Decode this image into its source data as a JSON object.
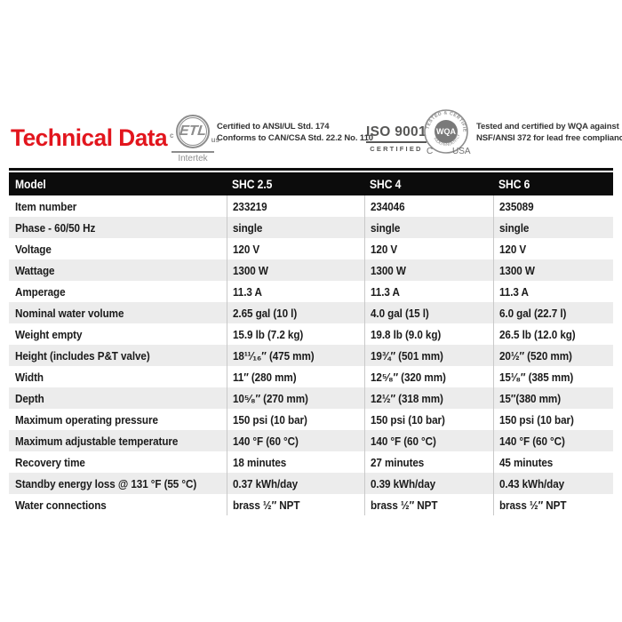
{
  "colors": {
    "red": "#e2151d",
    "headerBg": "#0c0c0c",
    "stripe": "#ececec",
    "sep": "#c9c9c9",
    "logo": "#8d8d8d"
  },
  "header": {
    "title": "Technical Data",
    "etl": {
      "mark": "ETL",
      "c": "c",
      "us": "us",
      "intertek": "Intertek",
      "line1": "Certified to ANSI/UL Std. 174",
      "line2": "Conforms to CAN/CSA Std. 22.2 No. 110"
    },
    "iso": {
      "line1": "ISO 9001",
      "line2": "CERTIFIED"
    },
    "wqa": {
      "arc_top": "TESTED & CERTIFIED",
      "arc_bottom": "INDEPENDENTLY",
      "center": "WQA",
      "c": "C",
      "usa": "USA",
      "line1": "Tested and certified by WQA against",
      "line2": "NSF/ANSI 372 for lead free compliance"
    }
  },
  "table": {
    "columns": [
      "Model",
      "SHC 2.5",
      "SHC 4",
      "SHC 6"
    ],
    "rows": [
      {
        "label": "Item number",
        "values": [
          "233219",
          "234046",
          "235089"
        ]
      },
      {
        "label": "Phase - 60/50 Hz",
        "values": [
          "single",
          "single",
          "single"
        ]
      },
      {
        "label": "Voltage",
        "values": [
          "120 V",
          "120 V",
          "120 V"
        ]
      },
      {
        "label": "Wattage",
        "values": [
          "1300 W",
          "1300 W",
          "1300 W"
        ]
      },
      {
        "label": "Amperage",
        "values": [
          "11.3 A",
          "11.3 A",
          "11.3 A"
        ]
      },
      {
        "label": "Nominal water volume",
        "values": [
          "2.65 gal (10 l)",
          "4.0 gal (15 l)",
          "6.0 gal (22.7 l)"
        ]
      },
      {
        "label": "Weight empty",
        "values": [
          "15.9 lb (7.2 kg)",
          "19.8 lb (9.0 kg)",
          "26.5 lb (12.0 kg)"
        ]
      },
      {
        "label": "Height (includes P&T valve)",
        "values": [
          "18¹¹⁄₁₆″ (475 mm)",
          "19¾″ (501 mm)",
          "20½″ (520 mm)"
        ]
      },
      {
        "label": "Width",
        "values": [
          "11″ (280 mm)",
          "12⁵⁄₈″ (320 mm)",
          "15¹⁄₈″ (385 mm)"
        ]
      },
      {
        "label": "Depth",
        "values": [
          "10⁵⁄₈″ (270 mm)",
          "12½″ (318 mm)",
          "15″(380 mm)"
        ]
      },
      {
        "label": "Maximum operating pressure",
        "values": [
          "150 psi (10 bar)",
          "150 psi (10 bar)",
          "150 psi (10 bar)"
        ]
      },
      {
        "label": "Maximum adjustable temperature",
        "values": [
          "140 °F (60 °C)",
          "140 °F (60 °C)",
          "140 °F (60 °C)"
        ]
      },
      {
        "label": "Recovery time",
        "values": [
          "18 minutes",
          "27 minutes",
          "45 minutes"
        ]
      },
      {
        "label": "Standby energy loss @ 131 °F (55 °C)",
        "values": [
          "0.37 kWh/day",
          "0.39 kWh/day",
          "0.43 kWh/day"
        ]
      },
      {
        "label": "Water connections",
        "values": [
          "brass ½″ NPT",
          "brass ½″ NPT",
          "brass ½″ NPT"
        ]
      }
    ]
  }
}
